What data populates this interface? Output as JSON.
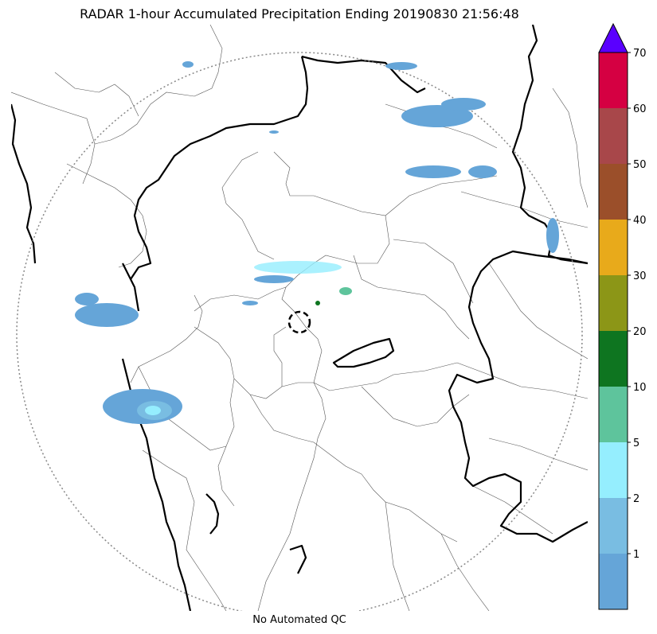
{
  "title": "RADAR 1-hour Accumulated Precipitation Ending 20190830 21:56:48",
  "footer": "No Automated QC",
  "colorbar": {
    "levels": [
      {
        "label": "",
        "color": "#65a5d8"
      },
      {
        "label": "1",
        "color": "#79bde2"
      },
      {
        "label": "2",
        "color": "#95eefe"
      },
      {
        "label": "5",
        "color": "#5ec49c"
      },
      {
        "label": "10",
        "color": "#0e7520"
      },
      {
        "label": "20",
        "color": "#8c9617"
      },
      {
        "label": "30",
        "color": "#e8aa1b"
      },
      {
        "label": "40",
        "color": "#9b4f2a"
      },
      {
        "label": "50",
        "color": "#a8474a"
      },
      {
        "label": "60",
        "color": "#d50042"
      },
      {
        "label": "70",
        "color": ""
      }
    ],
    "extend_max_color": "#5a00ff"
  },
  "map": {
    "radar_range_ring": "dotted-circle",
    "radar_center_marker": "dashed-circle",
    "colors": {
      "state_boundary": "#000000",
      "district_boundary": "#555555",
      "range_ring": "#888888",
      "precip_light": "#65a5d8",
      "precip_moderate": "#79bde2",
      "precip_heavy": "#95eefe",
      "precip_green": "#5ec49c"
    }
  }
}
